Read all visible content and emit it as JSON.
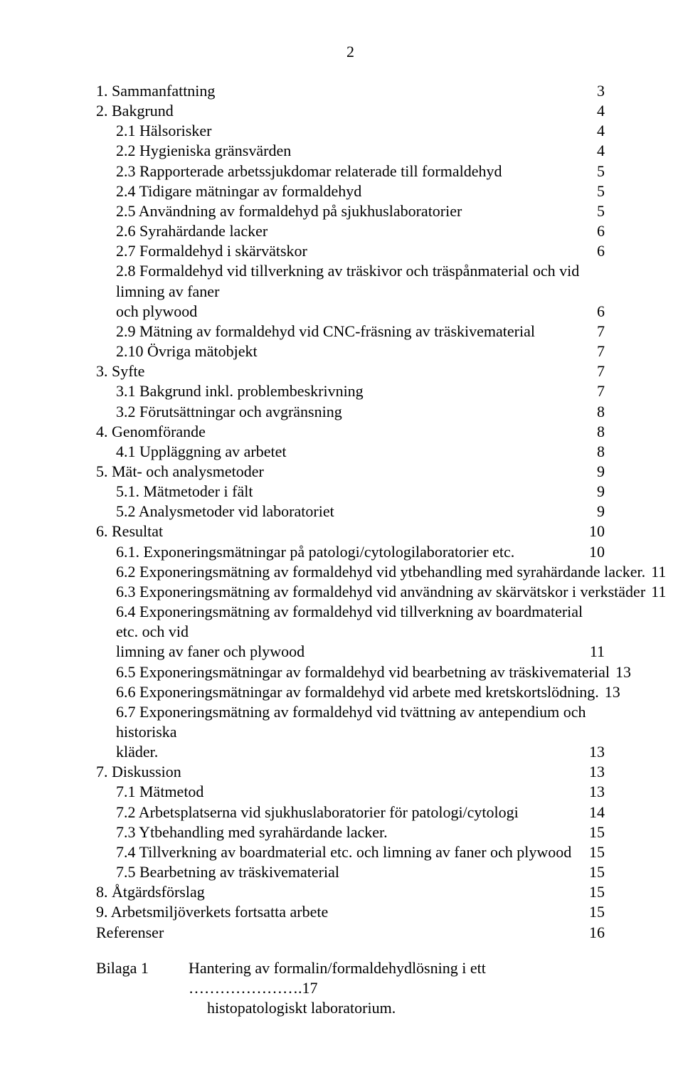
{
  "page_number": "2",
  "font": {
    "family": "Times New Roman",
    "size_pt": 12,
    "color": "#000000"
  },
  "background_color": "#ffffff",
  "toc": [
    {
      "level": 1,
      "title": "1. Sammanfattning",
      "page": "3"
    },
    {
      "level": 1,
      "title": "2. Bakgrund",
      "page": "4"
    },
    {
      "level": 2,
      "title": "2.1 Hälsorisker",
      "page": "4"
    },
    {
      "level": 2,
      "title": "2.2 Hygieniska gränsvärden",
      "page": "4"
    },
    {
      "level": 2,
      "title": "2.3 Rapporterade arbetssjukdomar relaterade till formaldehyd",
      "page": "5"
    },
    {
      "level": 2,
      "title": "2.4 Tidigare mätningar av formaldehyd",
      "page": "5"
    },
    {
      "level": 2,
      "title": "2.5 Användning av formaldehyd på sjukhuslaboratorier",
      "page": "5"
    },
    {
      "level": 2,
      "title": "2.6 Syrahärdande lacker",
      "page": "6"
    },
    {
      "level": 2,
      "title": "2.7 Formaldehyd i skärvätskor",
      "page": "6"
    },
    {
      "level": 2,
      "title_lines": [
        "2.8  Formaldehyd vid tillverkning av träskivor och träspånmaterial och vid limning av faner",
        "och plywood"
      ],
      "page": "6"
    },
    {
      "level": 2,
      "title": "2.9 Mätning av formaldehyd vid CNC-fräsning av träskivematerial",
      "page": "7"
    },
    {
      "level": 2,
      "title": "2.10 Övriga mätobjekt",
      "page": "7"
    },
    {
      "level": 1,
      "title": "3.  Syfte",
      "page": "7"
    },
    {
      "level": 2,
      "title": "3.1  Bakgrund inkl. problembeskrivning",
      "page": "7"
    },
    {
      "level": 2,
      "title": "3.2  Förutsättningar och avgränsning",
      "page": "8"
    },
    {
      "level": 1,
      "title": "4.  Genomförande",
      "page": "8"
    },
    {
      "level": 2,
      "title": "4.1  Uppläggning av arbetet",
      "page": "8"
    },
    {
      "level": 1,
      "title": "5.  Mät- och analysmetoder",
      "page": "9"
    },
    {
      "level": 2,
      "title": "5.1.  Mätmetoder i fält",
      "page": "9"
    },
    {
      "level": 2,
      "title": "5.2 Analysmetoder vid laboratoriet",
      "page": "9"
    },
    {
      "level": 1,
      "title": "6.   Resultat",
      "page": "10"
    },
    {
      "level": 2,
      "title": "6.1. Exponeringsmätningar på patologi/cytologilaboratorier etc. ",
      "page": "10"
    },
    {
      "level": 2,
      "title": "6.2 Exponeringsmätning av formaldehyd vid ytbehandling med syrahärdande lacker. ",
      "page": "11"
    },
    {
      "level": 2,
      "title": "6.3 Exponeringsmätning av formaldehyd vid användning av skärvätskor i verkstäder",
      "page": "11"
    },
    {
      "level": 2,
      "title_lines": [
        "6.4 Exponeringsmätning av formaldehyd vid tillverkning av boardmaterial etc. och vid",
        "limning av faner och plywood"
      ],
      "page": "11"
    },
    {
      "level": 2,
      "title": "6.5  Exponeringsmätningar av formaldehyd vid bearbetning av träskivematerial",
      "page": "13"
    },
    {
      "level": 2,
      "title": "6.6 Exponeringsmätningar av formaldehyd vid arbete med kretskortslödning. ",
      "page": "13"
    },
    {
      "level": 2,
      "title_lines": [
        "6.7 Exponeringsmätning av formaldehyd vid tvättning av antependium och historiska",
        "kläder. "
      ],
      "page": "13"
    },
    {
      "level": 1,
      "title": "7.  Diskussion",
      "page": "13"
    },
    {
      "level": 2,
      "title": "7.1 Mätmetod",
      "page": "13"
    },
    {
      "level": 2,
      "title": "7.2 Arbetsplatserna vid sjukhuslaboratorier för patologi/cytologi",
      "page": "14"
    },
    {
      "level": 2,
      "title": "7.3  Ytbehandling med syrahärdande lacker. ",
      "page": "15"
    },
    {
      "level": 2,
      "title": "7.4  Tillverkning av boardmaterial etc. och limning av faner och plywood",
      "page": "15"
    },
    {
      "level": 2,
      "title": "7.5 Bearbetning av träskivematerial",
      "page": "15"
    },
    {
      "level": 1,
      "title": "8.  Åtgärdsförslag",
      "page": "15"
    },
    {
      "level": 1,
      "title": "9.  Arbetsmiljöverkets fortsatta arbete",
      "page": "15"
    },
    {
      "level": 1,
      "title": "Referenser",
      "page": "16"
    }
  ],
  "bilaga": {
    "label": "Bilaga 1",
    "line1": "Hantering av formalin/formaldehydlösning i ett ………………….17",
    "line2": "histopatologiskt laboratorium."
  }
}
